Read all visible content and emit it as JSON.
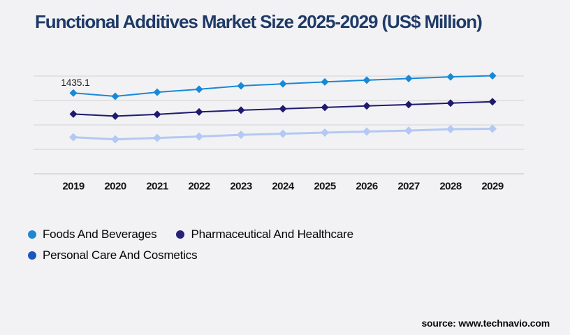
{
  "title": "Functional Additives Market Size 2025-2029 (US$ Million)",
  "source": {
    "label": "source:",
    "url": "www.technavio.com"
  },
  "colors": {
    "background": "#f2f2f5",
    "title_text": "#1f3a67",
    "gridline": "#d8d8db",
    "axis_line": "#cccccf",
    "tick_text": "#141414",
    "annotation_text": "#1c1c1c"
  },
  "chart_data": {
    "type": "line",
    "title": "Functional Additives Market Size 2025-2029 (US$ Million)",
    "xlabel": "",
    "ylabel": "US$ Million",
    "categories": [
      "2019",
      "2020",
      "2021",
      "2022",
      "2023",
      "2024",
      "2025",
      "2026",
      "2027",
      "2028",
      "2029"
    ],
    "series": [
      {
        "name": "Foods And Beverages",
        "color": "#1789d6",
        "legend_color": "#1d87d2",
        "marker": "diamond",
        "values": [
          1435.1,
          1376.2,
          1448.0,
          1501.3,
          1560.8,
          1596.4,
          1631.9,
          1662.5,
          1691.0,
          1721.6,
          1741.0
        ]
      },
      {
        "name": "Pharmaceutical And Healthcare",
        "color": "#1e1a6e",
        "legend_color": "#262179",
        "marker": "diamond",
        "values": [
          1060.5,
          1023.8,
          1054.2,
          1098.6,
          1129.3,
          1154.8,
          1179.2,
          1204.6,
          1229.1,
          1254.5,
          1278.9
        ]
      },
      {
        "name": "Personal Care And Cosmetics",
        "color": "#b3c9f2",
        "legend_color": "#1c57be",
        "marker": "diamond",
        "values": [
          649.2,
          611.6,
          636.3,
          661.0,
          692.4,
          711.2,
          730.5,
          749.8,
          767.4,
          791.9,
          799.3
        ]
      }
    ],
    "annotations": [
      {
        "series_index": 0,
        "category_index": 0,
        "text": "1435.1"
      }
    ],
    "ylim": [
      0,
      1735
    ],
    "gridline_count": 5,
    "grid": "horizontal",
    "legend_position": "bottom-left"
  }
}
